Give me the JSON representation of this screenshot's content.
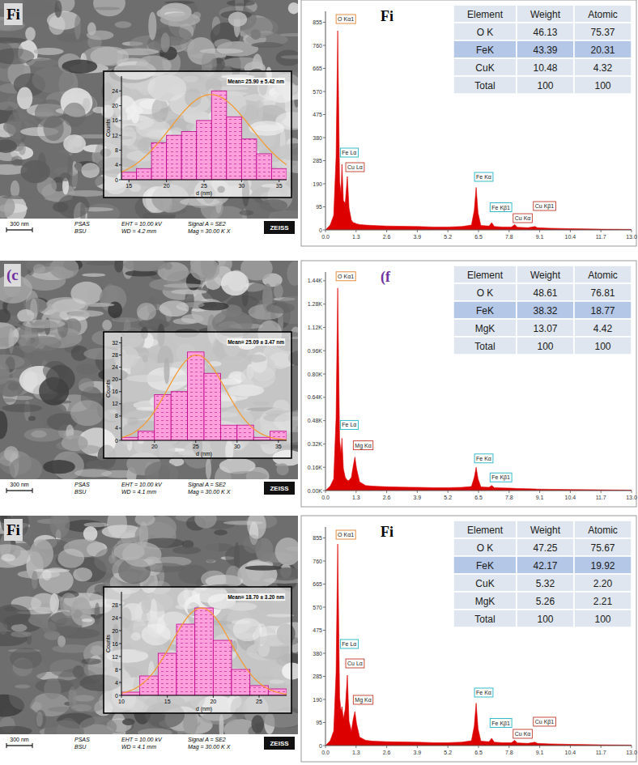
{
  "sem_images": [
    {
      "label": "Fi",
      "scale_bar": "300 nm",
      "lab": "PSAS",
      "site": "BSU",
      "eht": "EHT = 10.00 kV",
      "wd": "WD = 4.2 mm",
      "signal": "Signal A = SE2",
      "mag": "Mag = 30.00 K X",
      "brand": "ZEISS"
    },
    {
      "label": "(c",
      "scale_bar": "300 nm",
      "lab": "PSAS",
      "site": "BSU",
      "eht": "EHT = 10.00 kV",
      "wd": "WD = 4.1 mm",
      "signal": "Signal A = SE2",
      "mag": "Mag = 30.00 K X",
      "brand": "ZEISS"
    },
    {
      "label": "Fi",
      "scale_bar": "300 nm",
      "lab": "PSAS",
      "site": "BSU",
      "eht": "EHT = 10.00 kV",
      "wd": "WD = 4.1 mm",
      "signal": "Signal A = SE2",
      "mag": "Mag = 30.00 K X",
      "brand": "ZEISS"
    }
  ],
  "chart_data": [
    {
      "type": "histogram",
      "x_label": "d (nm)",
      "y_label": "Counts",
      "bins": [
        14,
        16,
        18,
        20,
        22,
        24,
        26,
        28,
        30,
        32,
        34,
        36
      ],
      "values": [
        2,
        3,
        10,
        12,
        13,
        16,
        24,
        17,
        11,
        7,
        3
      ],
      "color": "#ff9fdc",
      "xlim": [
        14,
        36
      ],
      "xticks": [
        15,
        20,
        25,
        30,
        35
      ],
      "ylim": [
        0,
        28
      ],
      "yticks": [
        0,
        4,
        8,
        12,
        16,
        20,
        24
      ],
      "annotations": [
        {
          "text": "Mean= 25.90 ± 5.42 nm"
        }
      ],
      "fit": {
        "mean": 25.9,
        "sd": 5.42,
        "peak": 23
      }
    },
    {
      "type": "area",
      "title": "Fi",
      "x": [
        0,
        0.2,
        0.35,
        0.45,
        0.52,
        0.6,
        0.66,
        0.7,
        0.76,
        0.84,
        0.93,
        1,
        1.1,
        1.18,
        1.25,
        1.32,
        1.45,
        1.7,
        2,
        2.6,
        3.2,
        3.9,
        4.6,
        5.2,
        5.8,
        6.2,
        6.32,
        6.4,
        6.48,
        6.6,
        6.95,
        7.06,
        7.17,
        7.5,
        7.9,
        8.04,
        8.15,
        8.6,
        8.9,
        9,
        9.5,
        10.4,
        11.7,
        13
      ],
      "values": [
        0,
        20,
        60,
        300,
        820,
        200,
        150,
        270,
        120,
        110,
        220,
        90,
        40,
        30,
        28,
        25,
        22,
        20,
        18,
        16,
        15,
        14,
        12,
        12,
        14,
        20,
        80,
        175,
        70,
        18,
        16,
        30,
        14,
        12,
        12,
        22,
        11,
        9,
        14,
        9,
        7,
        5,
        3,
        2
      ],
      "color": "#dd0000",
      "xlim": [
        0,
        13
      ],
      "xticks": [
        {
          "value": 0,
          "label": "0.0"
        },
        1.3,
        2.6,
        3.9,
        5.2,
        6.5,
        7.8,
        9.1,
        10.4,
        11.7,
        {
          "value": 13,
          "label": "13.0"
        }
      ],
      "ylim": [
        0,
        900
      ],
      "yticks": [
        0,
        95,
        190,
        285,
        380,
        475,
        570,
        665,
        760,
        855
      ],
      "annotations": [
        {
          "text": "O Kα1",
          "x": 0.52,
          "y": 850,
          "color": "#e0822e"
        },
        {
          "text": "Fe Lα",
          "x": 0.7,
          "y": 300,
          "color": "#22b3c6"
        },
        {
          "text": "Cu Lα",
          "x": 0.93,
          "y": 240,
          "color": "#c0392b"
        },
        {
          "text": "Fe Kα",
          "x": 6.4,
          "y": 200,
          "color": "#22b3c6"
        },
        {
          "text": "Fe Kβ1",
          "x": 7.06,
          "y": 75,
          "color": "#22b3c6"
        },
        {
          "text": "Cu Kα",
          "x": 8.04,
          "y": 30,
          "color": "#c0392b"
        },
        {
          "text": "Cu Kβ1",
          "x": 8.9,
          "y": 80,
          "color": "#c0392b"
        }
      ],
      "table": {
        "columns": [
          "Element",
          "Weight",
          "Atomic"
        ],
        "rows": [
          [
            "O K",
            "46.13",
            "75.37"
          ],
          [
            "FeK",
            "43.39",
            "20.31"
          ],
          [
            "CuK",
            "10.48",
            "4.32"
          ],
          [
            "Total",
            "100",
            "100"
          ]
        ]
      }
    },
    {
      "type": "histogram",
      "x_label": "d (nm)",
      "y_label": "Counts",
      "bins": [
        16,
        18,
        20,
        22,
        24,
        26,
        28,
        30,
        32,
        34,
        36
      ],
      "values": [
        1,
        3,
        15,
        16,
        29,
        22,
        5,
        5,
        1,
        3
      ],
      "color": "#ff9fdc",
      "xlim": [
        16,
        36
      ],
      "xticks": [
        20,
        25,
        30,
        35
      ],
      "ylim": [
        0,
        34
      ],
      "yticks": [
        0,
        4,
        8,
        12,
        16,
        20,
        24,
        28,
        32
      ],
      "annotations": [
        {
          "text": "Mean= 25.09 ± 3.47 nm"
        }
      ],
      "fit": {
        "mean": 25.09,
        "sd": 3.47,
        "peak": 28
      }
    },
    {
      "type": "area",
      "title": "(f",
      "x": [
        0,
        0.2,
        0.35,
        0.45,
        0.52,
        0.6,
        0.66,
        0.7,
        0.76,
        0.84,
        0.93,
        1,
        1.1,
        1.18,
        1.25,
        1.32,
        1.45,
        1.7,
        2,
        2.6,
        3.2,
        3.9,
        4.6,
        5.2,
        5.8,
        6.2,
        6.32,
        6.4,
        6.48,
        6.6,
        6.95,
        7.06,
        7.17,
        7.5,
        7.9,
        8.04,
        8.15,
        8.6,
        8.9,
        9,
        9.5,
        10.4,
        11.7,
        13
      ],
      "values": [
        0,
        30,
        80,
        500,
        1390,
        350,
        250,
        360,
        150,
        90,
        70,
        70,
        90,
        170,
        230,
        150,
        60,
        35,
        30,
        26,
        24,
        22,
        20,
        20,
        22,
        28,
        90,
        160,
        80,
        25,
        22,
        35,
        20,
        18,
        16,
        15,
        14,
        12,
        11,
        10,
        9,
        7,
        5,
        3
      ],
      "color": "#dd0000",
      "xlim": [
        0,
        13
      ],
      "xticks": [
        {
          "value": 0,
          "label": "0.0"
        },
        1.3,
        2.6,
        3.9,
        5.2,
        6.5,
        7.8,
        9.1,
        10.4,
        11.7,
        {
          "value": 13,
          "label": "13.0"
        }
      ],
      "ylim": [
        0,
        1500
      ],
      "yticks": [
        {
          "value": 0,
          "label": "0.00K"
        },
        {
          "value": 160,
          "label": "0.16K"
        },
        {
          "value": 320,
          "label": "0.32K"
        },
        {
          "value": 480,
          "label": "0.48K"
        },
        {
          "value": 640,
          "label": "0.64K"
        },
        {
          "value": 800,
          "label": "0.80K"
        },
        {
          "value": 960,
          "label": "0.96K"
        },
        {
          "value": 1120,
          "label": "1.12K"
        },
        {
          "value": 1280,
          "label": "1.28K"
        },
        {
          "value": 1440,
          "label": "1.44K"
        }
      ],
      "annotations": [
        {
          "text": "O Kα1",
          "x": 0.52,
          "y": 1440,
          "color": "#e0822e"
        },
        {
          "text": "Fe Lα",
          "x": 0.7,
          "y": 420,
          "color": "#22b3c6"
        },
        {
          "text": "Mg Kα",
          "x": 1.25,
          "y": 280,
          "color": "#c0392b"
        },
        {
          "text": "Fe Kα",
          "x": 6.4,
          "y": 190,
          "color": "#22b3c6"
        },
        {
          "text": "Fe Kβ1",
          "x": 7.06,
          "y": 60,
          "color": "#22b3c6"
        }
      ],
      "table": {
        "columns": [
          "Element",
          "Weight",
          "Atomic"
        ],
        "rows": [
          [
            "O K",
            "48.61",
            "76.81"
          ],
          [
            "FeK",
            "38.32",
            "18.77"
          ],
          [
            "MgK",
            "13.07",
            "4.42"
          ],
          [
            "Total",
            "100",
            "100"
          ]
        ]
      }
    },
    {
      "type": "histogram",
      "x_label": "d (nm)",
      "y_label": "Counts",
      "bins": [
        10,
        12,
        14,
        16,
        18,
        20,
        22,
        24,
        26,
        28
      ],
      "values": [
        1,
        6,
        13,
        22,
        27,
        17,
        8,
        3,
        2
      ],
      "color": "#ff9fdc",
      "xlim": [
        10,
        28
      ],
      "xticks": [
        10,
        15,
        20,
        25
      ],
      "ylim": [
        0,
        32
      ],
      "yticks": [
        0,
        4,
        8,
        12,
        16,
        20,
        24,
        28
      ],
      "annotations": [
        {
          "text": "Mean= 18.70 ± 3.20 nm"
        }
      ],
      "fit": {
        "mean": 18.7,
        "sd": 3.2,
        "peak": 27
      }
    },
    {
      "type": "area",
      "title": "Fi",
      "x": [
        0,
        0.2,
        0.35,
        0.45,
        0.52,
        0.6,
        0.66,
        0.7,
        0.76,
        0.84,
        0.93,
        1,
        1.1,
        1.18,
        1.25,
        1.32,
        1.45,
        1.7,
        2,
        2.6,
        3.2,
        3.9,
        4.6,
        5.2,
        5.8,
        6.2,
        6.32,
        6.4,
        6.48,
        6.6,
        6.95,
        7.06,
        7.17,
        7.5,
        7.9,
        8.04,
        8.15,
        8.6,
        8.9,
        9,
        9.5,
        10.4,
        11.7,
        13
      ],
      "values": [
        0,
        20,
        60,
        300,
        830,
        200,
        140,
        160,
        110,
        150,
        290,
        100,
        60,
        110,
        140,
        90,
        35,
        22,
        18,
        16,
        15,
        14,
        12,
        12,
        14,
        20,
        80,
        175,
        70,
        18,
        16,
        30,
        14,
        12,
        12,
        22,
        11,
        9,
        14,
        9,
        7,
        5,
        3,
        2
      ],
      "color": "#dd0000",
      "xlim": [
        0,
        13
      ],
      "xticks": [
        {
          "value": 0,
          "label": "0.0"
        },
        1.3,
        2.6,
        3.9,
        5.2,
        6.5,
        7.8,
        9.1,
        10.4,
        11.7,
        {
          "value": 13,
          "label": "13.0"
        }
      ],
      "ylim": [
        0,
        900
      ],
      "yticks": [
        0,
        95,
        190,
        285,
        380,
        475,
        570,
        665,
        760,
        855
      ],
      "annotations": [
        {
          "text": "O Kα1",
          "x": 0.52,
          "y": 850,
          "color": "#e0822e"
        },
        {
          "text": "Cu Lα",
          "x": 0.93,
          "y": 320,
          "color": "#c0392b"
        },
        {
          "text": "Fe Lα",
          "x": 0.7,
          "y": 400,
          "color": "#22b3c6"
        },
        {
          "text": "Mg Kα",
          "x": 1.25,
          "y": 170,
          "color": "#c0392b"
        },
        {
          "text": "Fe Kα",
          "x": 6.4,
          "y": 200,
          "color": "#22b3c6"
        },
        {
          "text": "Fe Kβ1",
          "x": 7.06,
          "y": 75,
          "color": "#22b3c6"
        },
        {
          "text": "Cu Kα",
          "x": 8.04,
          "y": 30,
          "color": "#c0392b"
        },
        {
          "text": "Cu Kβ1",
          "x": 8.9,
          "y": 80,
          "color": "#c0392b"
        }
      ],
      "table": {
        "columns": [
          "Element",
          "Weight",
          "Atomic"
        ],
        "rows": [
          [
            "O K",
            "47.25",
            "75.67"
          ],
          [
            "FeK",
            "42.17",
            "19.92"
          ],
          [
            "CuK",
            "5.32",
            "2.20"
          ],
          [
            "MgK",
            "5.26",
            "2.21"
          ],
          [
            "Total",
            "100",
            "100"
          ]
        ]
      }
    }
  ]
}
